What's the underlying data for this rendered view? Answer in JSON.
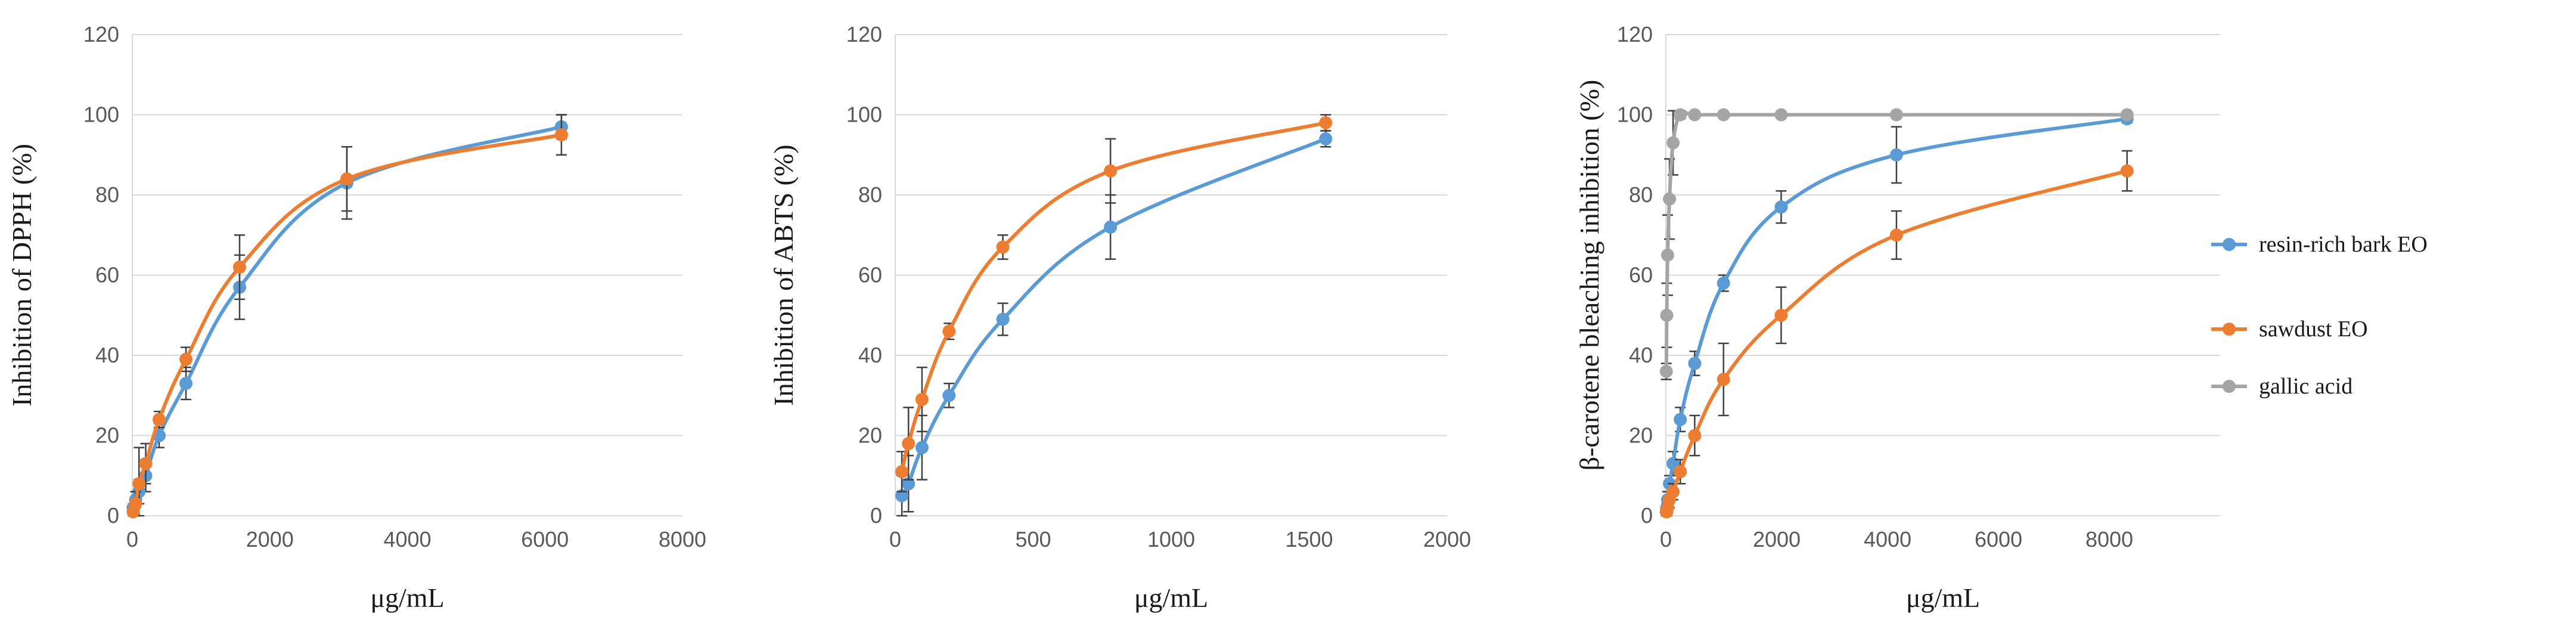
{
  "colors": {
    "resin": "#5B9BD5",
    "sawdust": "#ED7D31",
    "gallic": "#A5A5A5"
  },
  "legend": [
    {
      "key": "resin",
      "label": "resin-rich bark EO",
      "color": "#5B9BD5"
    },
    {
      "key": "sawdust",
      "label": "sawdust EO",
      "color": "#ED7D31"
    },
    {
      "key": "gallic",
      "label": "gallic acid",
      "color": "#A5A5A5"
    }
  ],
  "chart_data": [
    {
      "type": "line",
      "title": "",
      "xlabel": "μg/mL",
      "ylabel": "Inhibition of DPPH (%)",
      "xlim": [
        0,
        8000
      ],
      "ylim": [
        0,
        120
      ],
      "x_ticks": [
        0,
        2000,
        4000,
        6000,
        8000
      ],
      "y_ticks": [
        0,
        20,
        40,
        60,
        80,
        100,
        120
      ],
      "grid": "horizontal",
      "series": [
        {
          "name": "resin-rich bark EO",
          "color": "#5B9BD5",
          "x": [
            12,
            48,
            97,
            195,
            390,
            780,
            1560,
            3120,
            6240
          ],
          "y": [
            2,
            4,
            6,
            10,
            20,
            33,
            57,
            83,
            97
          ],
          "err": [
            1,
            2,
            3,
            4,
            3,
            4,
            8,
            9,
            3
          ]
        },
        {
          "name": "sawdust EO",
          "color": "#ED7D31",
          "x": [
            12,
            48,
            97,
            195,
            390,
            780,
            1560,
            3120,
            6240
          ],
          "y": [
            1,
            3,
            8,
            13,
            24,
            39,
            62,
            84,
            95
          ],
          "err": [
            1,
            3,
            9,
            5,
            2,
            3,
            8,
            8,
            5
          ]
        }
      ]
    },
    {
      "type": "line",
      "title": "",
      "xlabel": "μg/mL",
      "ylabel": "Inhibition of ABTS (%)",
      "xlim": [
        0,
        2000
      ],
      "ylim": [
        0,
        120
      ],
      "x_ticks": [
        0,
        500,
        1000,
        1500,
        2000
      ],
      "y_ticks": [
        0,
        20,
        40,
        60,
        80,
        100,
        120
      ],
      "grid": "horizontal",
      "series": [
        {
          "name": "resin-rich bark EO",
          "color": "#5B9BD5",
          "x": [
            24,
            48,
            97,
            195,
            390,
            780,
            1560
          ],
          "y": [
            5,
            8,
            17,
            30,
            49,
            72,
            94
          ],
          "err": [
            5,
            7,
            8,
            3,
            4,
            8,
            2
          ]
        },
        {
          "name": "sawdust EO",
          "color": "#ED7D31",
          "x": [
            24,
            48,
            97,
            195,
            390,
            780,
            1560
          ],
          "y": [
            11,
            18,
            29,
            46,
            67,
            86,
            98
          ],
          "err": [
            5,
            9,
            8,
            2,
            3,
            8,
            2
          ]
        }
      ]
    },
    {
      "type": "line",
      "title": "",
      "xlabel": "μg/mL",
      "ylabel": "β-carotene bleaching inhibition (%)",
      "xlim": [
        0,
        10000
      ],
      "ylim": [
        0,
        120
      ],
      "x_ticks": [
        0,
        2000,
        4000,
        6000,
        8000
      ],
      "y_ticks": [
        0,
        20,
        40,
        60,
        80,
        100,
        120
      ],
      "grid": "horizontal",
      "series": [
        {
          "name": "resin-rich bark EO",
          "color": "#5B9BD5",
          "x": [
            8,
            16,
            32,
            65,
            130,
            260,
            520,
            1040,
            2080,
            4160,
            8320
          ],
          "y": [
            1,
            2,
            4,
            8,
            13,
            24,
            38,
            58,
            77,
            90,
            99
          ],
          "err": [
            1,
            1,
            2,
            2,
            3,
            3,
            3,
            2,
            4,
            7,
            1
          ]
        },
        {
          "name": "sawdust EO",
          "color": "#ED7D31",
          "x": [
            8,
            16,
            32,
            65,
            130,
            260,
            520,
            1040,
            2080,
            4160,
            8320
          ],
          "y": [
            1,
            1,
            2,
            4,
            6,
            11,
            20,
            34,
            50,
            70,
            86
          ],
          "err": [
            1,
            1,
            1,
            2,
            2,
            3,
            5,
            9,
            7,
            6,
            5
          ]
        },
        {
          "name": "gallic acid",
          "color": "#A5A5A5",
          "x": [
            8,
            16,
            32,
            65,
            130,
            260,
            520,
            1040,
            2080,
            4160,
            8320
          ],
          "y": [
            36,
            50,
            65,
            79,
            93,
            100,
            100,
            100,
            100,
            100,
            100
          ],
          "err": [
            2,
            8,
            10,
            10,
            8,
            1,
            0,
            0,
            0,
            0,
            0
          ]
        }
      ]
    }
  ]
}
